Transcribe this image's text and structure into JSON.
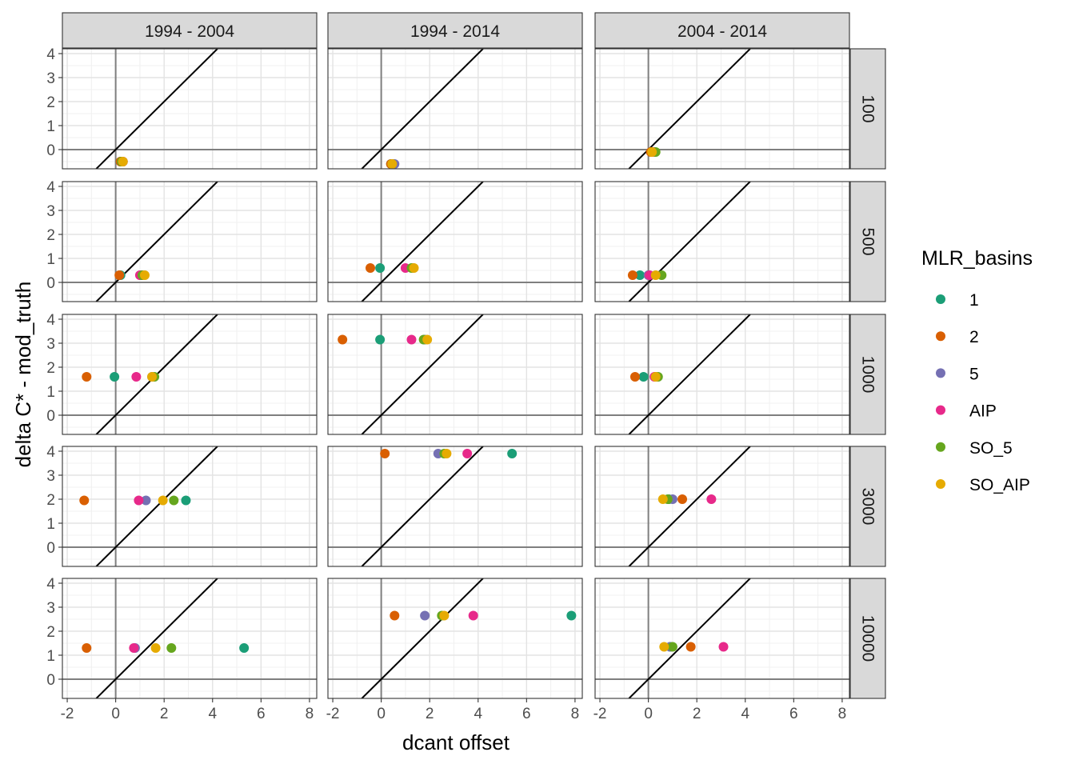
{
  "chart_data": {
    "type": "scatter",
    "xlabel": "dcant offset",
    "ylabel": "delta C* - mod_truth",
    "xlim": [
      -2.2,
      8.3
    ],
    "ylim": [
      -0.8,
      4.2
    ],
    "x_ticks": [
      "-2",
      "0",
      "2",
      "4",
      "6",
      "8"
    ],
    "y_ticks": [
      "0",
      "1",
      "2",
      "3",
      "4"
    ],
    "grid": true,
    "reference_lines": [
      "x = 0",
      "y = 0",
      "y = x"
    ],
    "legend_position": "right",
    "legend": {
      "title": "MLR_basins",
      "entries": [
        {
          "label": "1",
          "color": "#1b9e77"
        },
        {
          "label": "2",
          "color": "#d95f02"
        },
        {
          "label": "5",
          "color": "#7570b3"
        },
        {
          "label": "AIP",
          "color": "#e7298a"
        },
        {
          "label": "SO_5",
          "color": "#66a61e"
        },
        {
          "label": "SO_AIP",
          "color": "#e6ab02"
        }
      ]
    },
    "columns": [
      "1994 - 2004",
      "1994 - 2014",
      "2004 - 2014"
    ],
    "rows": [
      "100",
      "500",
      "1000",
      "3000",
      "10000"
    ],
    "panels": [
      {
        "row": 0,
        "col": 0,
        "y": -0.5,
        "points": {
          "1": 0.2,
          "2": 0.2,
          "5": 0.3,
          "AIP": 0.3,
          "SO_5": 0.25,
          "SO_AIP": 0.3
        }
      },
      {
        "row": 0,
        "col": 1,
        "y": -0.6,
        "points": {
          "1": 0.4,
          "2": 0.4,
          "5": 0.55,
          "AIP": 0.45,
          "SO_5": 0.45,
          "SO_AIP": 0.45
        }
      },
      {
        "row": 0,
        "col": 2,
        "y": -0.1,
        "points": {
          "1": 0.25,
          "2": 0.1,
          "5": 0.25,
          "AIP": 0.2,
          "SO_5": 0.3,
          "SO_AIP": 0.15
        }
      },
      {
        "row": 1,
        "col": 0,
        "y": 0.3,
        "points": {
          "1": 0.2,
          "2": 0.15,
          "5": 1.05,
          "AIP": 1.0,
          "SO_5": 1.1,
          "SO_AIP": 1.2
        }
      },
      {
        "row": 1,
        "col": 1,
        "y": 0.6,
        "points": {
          "1": -0.05,
          "2": -0.45,
          "5": 1.3,
          "AIP": 1.0,
          "SO_5": 1.25,
          "SO_AIP": 1.35
        }
      },
      {
        "row": 1,
        "col": 2,
        "y": 0.3,
        "points": {
          "1": -0.35,
          "2": -0.65,
          "5": 0.0,
          "AIP": 0.05,
          "SO_5": 0.55,
          "SO_AIP": 0.3
        }
      },
      {
        "row": 2,
        "col": 0,
        "y": 1.6,
        "points": {
          "1": -0.05,
          "2": -1.2,
          "5": 1.5,
          "AIP": 0.85,
          "SO_5": 1.6,
          "SO_AIP": 1.5
        }
      },
      {
        "row": 2,
        "col": 1,
        "y": 3.15,
        "points": {
          "1": -0.05,
          "2": -1.6,
          "5": 1.8,
          "AIP": 1.25,
          "SO_5": 1.75,
          "SO_AIP": 1.9
        }
      },
      {
        "row": 2,
        "col": 2,
        "y": 1.6,
        "points": {
          "1": -0.2,
          "2": -0.55,
          "5": 0.3,
          "AIP": 0.25,
          "SO_5": 0.4,
          "SO_AIP": 0.3
        }
      },
      {
        "row": 3,
        "col": 0,
        "y": 1.95,
        "points": {
          "1": 2.9,
          "2": -1.3,
          "5": 1.25,
          "AIP": 0.95,
          "SO_5": 2.4,
          "SO_AIP": 1.95
        }
      },
      {
        "row": 3,
        "col": 1,
        "y": 3.9,
        "points": {
          "1": 5.4,
          "2": 0.15,
          "5": 2.35,
          "AIP": 3.55,
          "SO_5": 2.6,
          "SO_AIP": 2.7
        }
      },
      {
        "row": 3,
        "col": 2,
        "y": 2.0,
        "points": {
          "1": 0.85,
          "2": 1.4,
          "5": 1.0,
          "AIP": 2.6,
          "SO_5": 0.8,
          "SO_AIP": 0.6
        }
      },
      {
        "row": 4,
        "col": 0,
        "y": 1.3,
        "points": {
          "1": 5.3,
          "2": -1.2,
          "5": 0.8,
          "AIP": 0.75,
          "SO_5": 2.3,
          "SO_AIP": 1.65
        }
      },
      {
        "row": 4,
        "col": 1,
        "y": 2.65,
        "points": {
          "1": 7.85,
          "2": 0.55,
          "5": 1.8,
          "AIP": 3.8,
          "SO_5": 2.5,
          "SO_AIP": 2.6
        }
      },
      {
        "row": 4,
        "col": 2,
        "y": 1.35,
        "points": {
          "1": 0.9,
          "2": 1.75,
          "5": 0.9,
          "AIP": 3.1,
          "SO_5": 1.0,
          "SO_AIP": 0.65
        }
      }
    ]
  }
}
